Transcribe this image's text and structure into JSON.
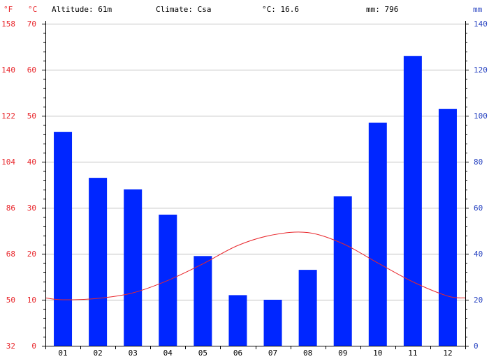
{
  "chart_data": {
    "type": "bar",
    "header": {
      "altitude": "Altitude: 61m",
      "climate": "Climate: Csa",
      "avg_temp": "°C: 16.6",
      "precip_total": "mm: 796"
    },
    "unit_labels": {
      "fahrenheit": "°F",
      "celsius": "°C",
      "mm": "mm"
    },
    "categories": [
      "01",
      "02",
      "03",
      "04",
      "05",
      "06",
      "07",
      "08",
      "09",
      "10",
      "11",
      "12"
    ],
    "precipitation_mm": [
      93,
      73,
      68,
      57,
      39,
      22,
      20,
      33,
      65,
      97,
      126,
      103
    ],
    "temperature_c": [
      10.0,
      10.3,
      11.5,
      14.2,
      17.8,
      21.8,
      24.1,
      24.6,
      22.2,
      18.0,
      13.9,
      10.8
    ],
    "celsius_axis": {
      "min": 0,
      "max": 70,
      "ticks": [
        "0",
        "10",
        "20",
        "30",
        "40",
        "50",
        "60",
        "70"
      ]
    },
    "fahrenheit_axis": {
      "ticks": [
        "32",
        "50",
        "68",
        "86",
        "104",
        "122",
        "140",
        "158"
      ]
    },
    "mm_axis": {
      "min": 0,
      "max": 140,
      "ticks": [
        "0",
        "20",
        "40",
        "60",
        "80",
        "100",
        "120",
        "140"
      ]
    },
    "grid": true,
    "colors": {
      "bars": "#0026ff",
      "temperature_line": "#e8262b",
      "left_axis": "#e8262b",
      "right_axis": "#2b46c2",
      "grid": "#c0c0c0"
    }
  }
}
